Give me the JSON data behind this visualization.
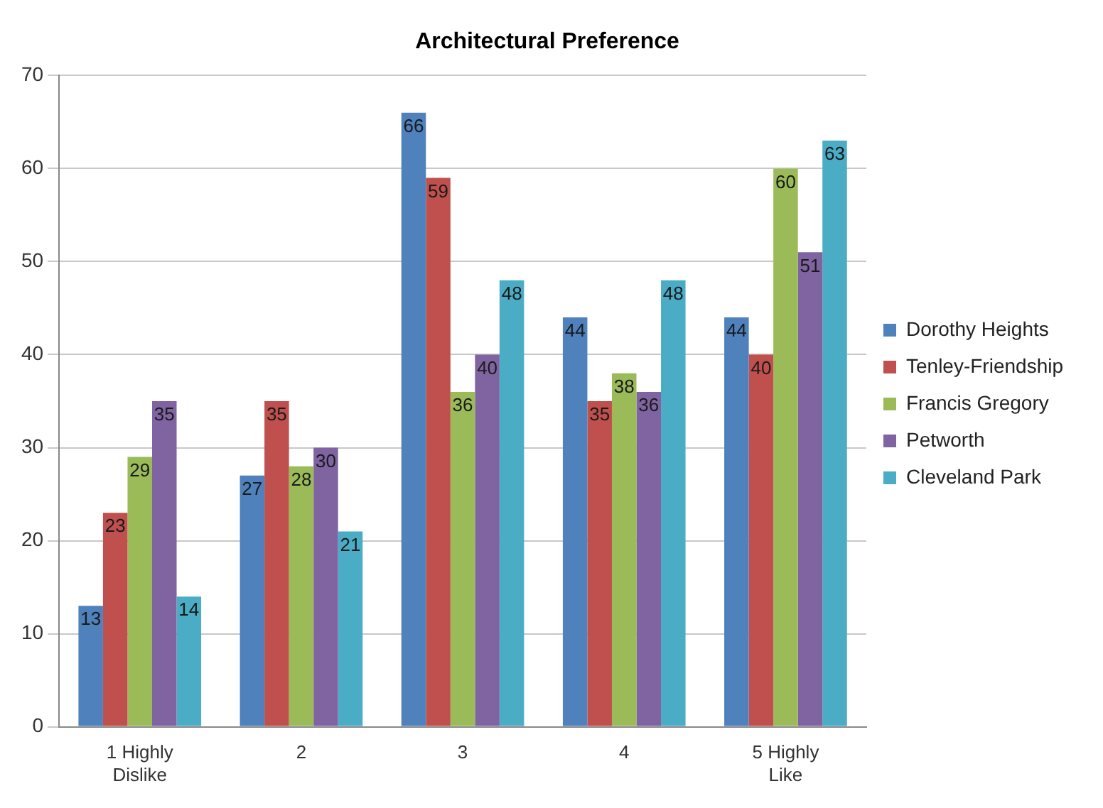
{
  "chart_data": {
    "type": "bar",
    "title": "Architectural Preference",
    "categories": [
      "1 Highly Dislike",
      "2",
      "3",
      "4",
      "5 Highly Like"
    ],
    "series": [
      {
        "name": "Dorothy Heights",
        "color": "#4f81bd",
        "values": [
          13,
          27,
          66,
          44,
          44
        ]
      },
      {
        "name": "Tenley-Friendship",
        "color": "#c0504d",
        "values": [
          23,
          35,
          59,
          35,
          40
        ]
      },
      {
        "name": "Francis Gregory",
        "color": "#9bbb59",
        "values": [
          29,
          28,
          36,
          38,
          60
        ]
      },
      {
        "name": "Petworth",
        "color": "#8064a2",
        "values": [
          35,
          30,
          40,
          36,
          51
        ]
      },
      {
        "name": "Cleveland Park",
        "color": "#4bacc6",
        "values": [
          14,
          21,
          48,
          48,
          63
        ]
      }
    ],
    "ylim": [
      0,
      70
    ],
    "yticks": [
      0,
      10,
      20,
      30,
      40,
      50,
      60,
      70
    ],
    "grid": "y",
    "legend": "right",
    "data_labels": true
  }
}
